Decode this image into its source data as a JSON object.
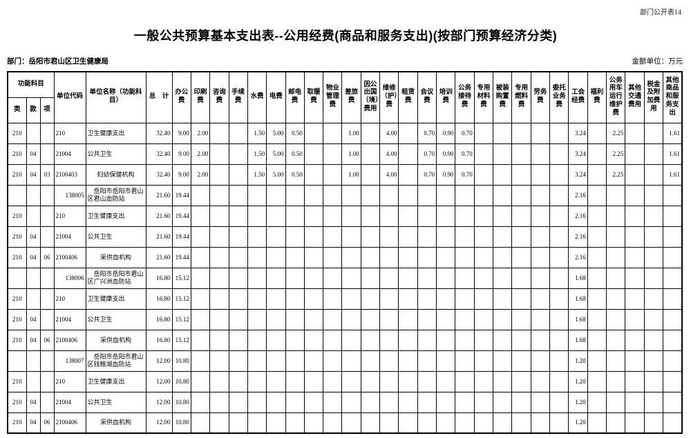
{
  "page": {
    "sheet_label": "部门公开表14",
    "title": "一般公共预算基本支出表--公用经费(商品和服务支出)(按部门预算经济分类)",
    "department_label": "部门：岳阳市君山区卫生健康局",
    "unit_label": "金额单位：万元"
  },
  "table": {
    "group_header": {
      "label": "功能科目",
      "span": 3
    },
    "columns": [
      {
        "key": "lei",
        "label": "类"
      },
      {
        "key": "kuan",
        "label": "款"
      },
      {
        "key": "xiang",
        "label": "项"
      },
      {
        "key": "unit-code",
        "label": "单位代码"
      },
      {
        "key": "unit-name",
        "label": "单位名称（功能科目）"
      },
      {
        "key": "total",
        "label": "总　计"
      },
      {
        "key": "office-fee",
        "label": "办公费"
      },
      {
        "key": "printing-fee",
        "label": "印刷费"
      },
      {
        "key": "consulting-fee",
        "label": "咨询费"
      },
      {
        "key": "handling-fee",
        "label": "手续费"
      },
      {
        "key": "water-fee",
        "label": "水费"
      },
      {
        "key": "electricity-fee",
        "label": "电费"
      },
      {
        "key": "post-telecom-fee",
        "label": "邮电费"
      },
      {
        "key": "heating-fee",
        "label": "取暖费"
      },
      {
        "key": "property-mgmt-fee",
        "label": "物业管理费"
      },
      {
        "key": "travel-fee",
        "label": "差旅费"
      },
      {
        "key": "abroad-fee",
        "label": "因公出国（境）费用"
      },
      {
        "key": "maintenance-fee",
        "label": "维修（护）费"
      },
      {
        "key": "rental-fee",
        "label": "租赁费"
      },
      {
        "key": "meeting-fee",
        "label": "会议费"
      },
      {
        "key": "training-fee",
        "label": "培训费"
      },
      {
        "key": "official-reception-fee",
        "label": "公务接待费"
      },
      {
        "key": "special-material-fee",
        "label": "专用材料费"
      },
      {
        "key": "uniform-purchase-fee",
        "label": "被装购置费"
      },
      {
        "key": "special-fuel-fee",
        "label": "专用燃料费"
      },
      {
        "key": "labor-fee",
        "label": "劳务费"
      },
      {
        "key": "entrusted-business-fee",
        "label": "委托业务费"
      },
      {
        "key": "union-fund",
        "label": "工会经费"
      },
      {
        "key": "welfare-fee",
        "label": "福利费"
      },
      {
        "key": "official-vehicle-fee",
        "label": "公务用车运行维护费"
      },
      {
        "key": "other-transport-fee",
        "label": "其他交通费用"
      },
      {
        "key": "tax-surcharge",
        "label": "税金及附加费用"
      },
      {
        "key": "other-goods-services",
        "label": "其他商品和服务支出"
      }
    ],
    "rows": [
      {
        "code_align": "left",
        "name_align": "left",
        "cells": [
          "210",
          "",
          "",
          "210",
          "卫生健康支出",
          "32.40",
          "9.00",
          "2.00",
          "",
          "",
          "1.50",
          "5.00",
          "0.50",
          "",
          "",
          "1.00",
          "",
          "4.00",
          "",
          "0.70",
          "0.90",
          "0.70",
          "",
          "",
          "",
          "",
          "",
          "3.24",
          "",
          "2.25",
          "",
          "",
          "1.61"
        ]
      },
      {
        "code_align": "left",
        "name_align": "left",
        "cells": [
          "210",
          "04",
          "",
          "21004",
          "公共卫生",
          "32.40",
          "9.00",
          "2.00",
          "",
          "",
          "1.50",
          "5.00",
          "0.50",
          "",
          "",
          "1.00",
          "",
          "4.00",
          "",
          "0.70",
          "0.90",
          "0.70",
          "",
          "",
          "",
          "",
          "",
          "3.24",
          "",
          "2.25",
          "",
          "",
          "1.61"
        ]
      },
      {
        "code_align": "left",
        "name_align": "center",
        "cells": [
          "210",
          "04",
          "03",
          "2100403",
          "妇幼保健机构",
          "32.40",
          "9.00",
          "2.00",
          "",
          "",
          "1.50",
          "5.00",
          "0.50",
          "",
          "",
          "1.00",
          "",
          "4.00",
          "",
          "0.70",
          "0.90",
          "0.70",
          "",
          "",
          "",
          "",
          "",
          "3.24",
          "",
          "2.25",
          "",
          "",
          "1.61"
        ]
      },
      {
        "code_align": "right",
        "name_align": "indent",
        "cells": [
          "",
          "",
          "",
          "138005",
          "岳阳市岳阳市君山区君山血防站",
          "21.60",
          "19.44",
          "",
          "",
          "",
          "",
          "",
          "",
          "",
          "",
          "",
          "",
          "",
          "",
          "",
          "",
          "",
          "",
          "",
          "",
          "",
          "",
          "2.16",
          "",
          "",
          "",
          "",
          ""
        ]
      },
      {
        "code_align": "left",
        "name_align": "left",
        "cells": [
          "210",
          "",
          "",
          "210",
          "卫生健康支出",
          "21.60",
          "19.44",
          "",
          "",
          "",
          "",
          "",
          "",
          "",
          "",
          "",
          "",
          "",
          "",
          "",
          "",
          "",
          "",
          "",
          "",
          "",
          "",
          "2.16",
          "",
          "",
          "",
          "",
          ""
        ]
      },
      {
        "code_align": "left",
        "name_align": "left",
        "cells": [
          "210",
          "04",
          "",
          "21004",
          "公共卫生",
          "21.60",
          "19.44",
          "",
          "",
          "",
          "",
          "",
          "",
          "",
          "",
          "",
          "",
          "",
          "",
          "",
          "",
          "",
          "",
          "",
          "",
          "",
          "",
          "2.16",
          "",
          "",
          "",
          "",
          ""
        ]
      },
      {
        "code_align": "left",
        "name_align": "center",
        "cells": [
          "210",
          "04",
          "06",
          "2100406",
          "采供血机构",
          "21.60",
          "19.44",
          "",
          "",
          "",
          "",
          "",
          "",
          "",
          "",
          "",
          "",
          "",
          "",
          "",
          "",
          "",
          "",
          "",
          "",
          "",
          "",
          "2.16",
          "",
          "",
          "",
          "",
          ""
        ]
      },
      {
        "code_align": "right",
        "name_align": "indent",
        "cells": [
          "",
          "",
          "",
          "138006",
          "岳阳市岳阳市君山区广兴洲血防站",
          "16.80",
          "15.12",
          "",
          "",
          "",
          "",
          "",
          "",
          "",
          "",
          "",
          "",
          "",
          "",
          "",
          "",
          "",
          "",
          "",
          "",
          "",
          "",
          "1.68",
          "",
          "",
          "",
          "",
          ""
        ]
      },
      {
        "code_align": "left",
        "name_align": "left",
        "cells": [
          "210",
          "",
          "",
          "210",
          "卫生健康支出",
          "16.80",
          "15.12",
          "",
          "",
          "",
          "",
          "",
          "",
          "",
          "",
          "",
          "",
          "",
          "",
          "",
          "",
          "",
          "",
          "",
          "",
          "",
          "",
          "1.68",
          "",
          "",
          "",
          "",
          ""
        ]
      },
      {
        "code_align": "left",
        "name_align": "left",
        "cells": [
          "210",
          "04",
          "",
          "21004",
          "公共卫生",
          "16.80",
          "15.12",
          "",
          "",
          "",
          "",
          "",
          "",
          "",
          "",
          "",
          "",
          "",
          "",
          "",
          "",
          "",
          "",
          "",
          "",
          "",
          "",
          "1.68",
          "",
          "",
          "",
          "",
          ""
        ]
      },
      {
        "code_align": "left",
        "name_align": "center",
        "cells": [
          "210",
          "04",
          "06",
          "2100406",
          "采供血机构",
          "16.80",
          "15.12",
          "",
          "",
          "",
          "",
          "",
          "",
          "",
          "",
          "",
          "",
          "",
          "",
          "",
          "",
          "",
          "",
          "",
          "",
          "",
          "",
          "1.68",
          "",
          "",
          "",
          "",
          ""
        ]
      },
      {
        "code_align": "right",
        "name_align": "indent",
        "cells": [
          "",
          "",
          "",
          "138007",
          "岳阳市岳阳市君山区钱粮湖血防站",
          "12.00",
          "10.80",
          "",
          "",
          "",
          "",
          "",
          "",
          "",
          "",
          "",
          "",
          "",
          "",
          "",
          "",
          "",
          "",
          "",
          "",
          "",
          "",
          "1.20",
          "",
          "",
          "",
          "",
          ""
        ]
      },
      {
        "code_align": "left",
        "name_align": "left",
        "cells": [
          "210",
          "",
          "",
          "210",
          "卫生健康支出",
          "12.00",
          "10.80",
          "",
          "",
          "",
          "",
          "",
          "",
          "",
          "",
          "",
          "",
          "",
          "",
          "",
          "",
          "",
          "",
          "",
          "",
          "",
          "",
          "1.20",
          "",
          "",
          "",
          "",
          ""
        ]
      },
      {
        "code_align": "left",
        "name_align": "left",
        "cells": [
          "210",
          "04",
          "",
          "21004",
          "公共卫生",
          "12.00",
          "10.80",
          "",
          "",
          "",
          "",
          "",
          "",
          "",
          "",
          "",
          "",
          "",
          "",
          "",
          "",
          "",
          "",
          "",
          "",
          "",
          "",
          "1.20",
          "",
          "",
          "",
          "",
          ""
        ]
      },
      {
        "code_align": "left",
        "name_align": "center",
        "cells": [
          "210",
          "04",
          "06",
          "2100406",
          "采供血机构",
          "12.00",
          "10.80",
          "",
          "",
          "",
          "",
          "",
          "",
          "",
          "",
          "",
          "",
          "",
          "",
          "",
          "",
          "",
          "",
          "",
          "",
          "",
          "",
          "1.20",
          "",
          "",
          "",
          "",
          ""
        ]
      }
    ]
  }
}
